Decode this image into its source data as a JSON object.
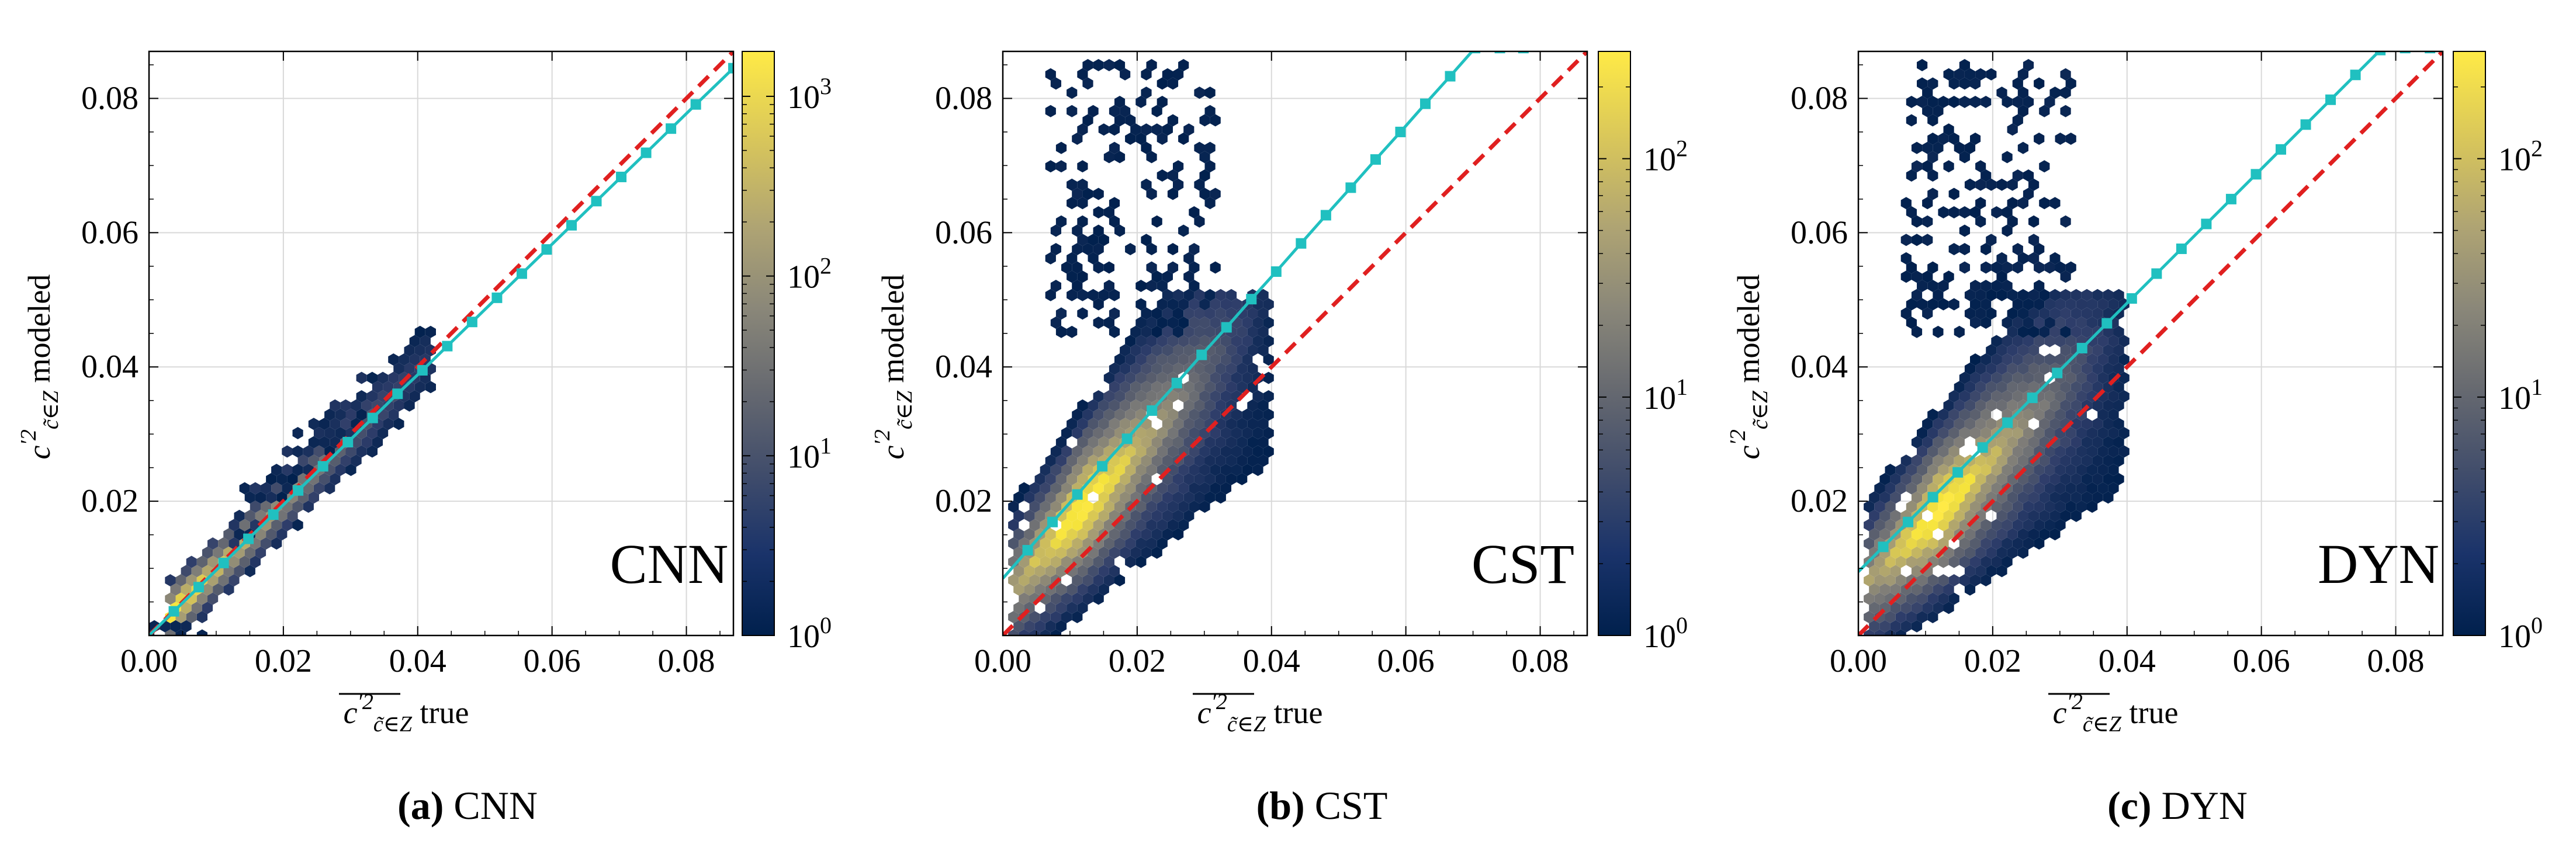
{
  "figure": {
    "colors": {
      "diagonal": "#e02020",
      "fit": "#20c0c0",
      "grid": "#d9d9d9",
      "cmap": [
        "#00204d",
        "#2e3d6a",
        "#575d6d",
        "#7c7b78",
        "#a59c74",
        "#cfbf5c",
        "#f5e33c",
        "#ffea46"
      ]
    },
    "panels": [
      {
        "id": "a",
        "caption_letter": "(a)",
        "caption_text": " CNN",
        "model": "CNN",
        "xlabel_main": "c",
        "xlabel_sup": "′2",
        "xlabel_sub": "c̃∈Z",
        "xlabel_suffix": " true",
        "ylabel_main": "c",
        "ylabel_sup": "′2",
        "ylabel_sub": "c̃∈Z",
        "ylabel_suffix": " modeled",
        "xticks": [
          "0.00",
          "0.02",
          "0.04",
          "0.06",
          "0.08"
        ],
        "yticks": [
          "0.02",
          "0.04",
          "0.06",
          "0.08"
        ],
        "colorbar_ticks": [
          {
            "base": "10",
            "exp": "0",
            "v": 0
          },
          {
            "base": "10",
            "exp": "1",
            "v": 1
          },
          {
            "base": "10",
            "exp": "2",
            "v": 2
          },
          {
            "base": "10",
            "exp": "3",
            "v": 3
          }
        ],
        "colorbar_max_exp": 3.25
      },
      {
        "id": "b",
        "caption_letter": "(b)",
        "caption_text": " CST",
        "model": "CST",
        "xlabel_main": "c",
        "xlabel_sup": "′2",
        "xlabel_sub": "c̃∈Z",
        "xlabel_suffix": " true",
        "ylabel_main": "c",
        "ylabel_sup": "′2",
        "ylabel_sub": "c̃∈Z",
        "ylabel_suffix": " modeled",
        "xticks": [
          "0.00",
          "0.02",
          "0.04",
          "0.06",
          "0.08"
        ],
        "yticks": [
          "0.02",
          "0.04",
          "0.06",
          "0.08"
        ],
        "colorbar_ticks": [
          {
            "base": "10",
            "exp": "0",
            "v": 0
          },
          {
            "base": "10",
            "exp": "1",
            "v": 1
          },
          {
            "base": "10",
            "exp": "2",
            "v": 2
          }
        ],
        "colorbar_max_exp": 2.45
      },
      {
        "id": "c",
        "caption_letter": "(c)",
        "caption_text": " DYN",
        "model": "DYN",
        "xlabel_main": "c",
        "xlabel_sup": "′2",
        "xlabel_sub": "c̃∈Z",
        "xlabel_suffix": " true",
        "ylabel_main": "c",
        "ylabel_sup": "′2",
        "ylabel_sub": "c̃∈Z",
        "ylabel_suffix": " modeled",
        "xticks": [
          "0.00",
          "0.02",
          "0.04",
          "0.06",
          "0.08"
        ],
        "yticks": [
          "0.02",
          "0.04",
          "0.06",
          "0.08"
        ],
        "colorbar_ticks": [
          {
            "base": "10",
            "exp": "0",
            "v": 0
          },
          {
            "base": "10",
            "exp": "1",
            "v": 1
          },
          {
            "base": "10",
            "exp": "2",
            "v": 2
          }
        ],
        "colorbar_max_exp": 2.45
      }
    ]
  },
  "chart_data": [
    {
      "type": "scatter",
      "subtype": "hexbin",
      "title": "CNN",
      "xlabel": "c'2 (c̃∈Z) true",
      "ylabel": "c'2 (c̃∈Z) modeled",
      "xlim": [
        0.0,
        0.087
      ],
      "ylim": [
        0.0,
        0.087
      ],
      "colorbar": {
        "scale": "log",
        "range": [
          1,
          1800
        ],
        "label_ticks": [
          "10^0",
          "10^1",
          "10^2",
          "10^3"
        ]
      },
      "series": [
        {
          "name": "reference y=x",
          "style": "dashed",
          "color": "#e02020",
          "x": [
            0.0,
            0.087
          ],
          "y": [
            0.0,
            0.087
          ]
        },
        {
          "name": "mean fit",
          "style": "solid-markers",
          "color": "#20c0c0",
          "x": [
            0.0,
            0.0037,
            0.0074,
            0.0111,
            0.0148,
            0.0185,
            0.0222,
            0.0259,
            0.0296,
            0.0333,
            0.037,
            0.0407,
            0.0444,
            0.0481,
            0.0518,
            0.0555,
            0.0592,
            0.0629,
            0.0666,
            0.0703,
            0.074,
            0.0777,
            0.0814,
            0.087
          ],
          "y": [
            0.0,
            0.0036,
            0.0072,
            0.0108,
            0.0144,
            0.018,
            0.0216,
            0.0252,
            0.0288,
            0.0324,
            0.036,
            0.0395,
            0.0431,
            0.0467,
            0.0503,
            0.0539,
            0.0575,
            0.0611,
            0.0647,
            0.0683,
            0.0719,
            0.0755,
            0.0791,
            0.0845
          ]
        }
      ]
    },
    {
      "type": "scatter",
      "subtype": "hexbin",
      "title": "CST",
      "xlabel": "c'2 (c̃∈Z) true",
      "ylabel": "c'2 (c̃∈Z) modeled",
      "xlim": [
        0.0,
        0.087
      ],
      "ylim": [
        0.0,
        0.087
      ],
      "colorbar": {
        "scale": "log",
        "range": [
          1,
          280
        ],
        "label_ticks": [
          "10^0",
          "10^1",
          "10^2"
        ]
      },
      "series": [
        {
          "name": "reference y=x",
          "style": "dashed",
          "color": "#e02020",
          "x": [
            0.0,
            0.087
          ],
          "y": [
            0.0,
            0.087
          ]
        },
        {
          "name": "mean fit",
          "style": "solid-markers",
          "color": "#20c0c0",
          "x": [
            0.0,
            0.0037,
            0.0074,
            0.0111,
            0.0148,
            0.0185,
            0.0222,
            0.0259,
            0.0296,
            0.0333,
            0.037,
            0.0407,
            0.0444,
            0.0481,
            0.0518,
            0.0555,
            0.0592,
            0.0629,
            0.0666,
            0.0703,
            0.074,
            0.0775
          ],
          "y": [
            0.0085,
            0.0127,
            0.0169,
            0.021,
            0.0252,
            0.0293,
            0.0335,
            0.0376,
            0.0418,
            0.0459,
            0.0501,
            0.0542,
            0.0584,
            0.0626,
            0.0667,
            0.0709,
            0.075,
            0.0792,
            0.0833,
            0.0875,
            0.0875,
            0.0875
          ]
        }
      ]
    },
    {
      "type": "scatter",
      "subtype": "hexbin",
      "title": "DYN",
      "xlabel": "c'2 (c̃∈Z) true",
      "ylabel": "c'2 (c̃∈Z) modeled",
      "xlim": [
        0.0,
        0.087
      ],
      "ylim": [
        0.0,
        0.087
      ],
      "colorbar": {
        "scale": "log",
        "range": [
          1,
          280
        ],
        "label_ticks": [
          "10^0",
          "10^1",
          "10^2"
        ]
      },
      "series": [
        {
          "name": "reference y=x",
          "style": "dashed",
          "color": "#e02020",
          "x": [
            0.0,
            0.087
          ],
          "y": [
            0.0,
            0.087
          ]
        },
        {
          "name": "mean fit",
          "style": "solid-markers",
          "color": "#20c0c0",
          "x": [
            0.0,
            0.0037,
            0.0074,
            0.0111,
            0.0148,
            0.0185,
            0.0222,
            0.0259,
            0.0296,
            0.0333,
            0.037,
            0.0407,
            0.0444,
            0.0481,
            0.0518,
            0.0555,
            0.0592,
            0.0629,
            0.0666,
            0.0703,
            0.074,
            0.0777,
            0.0814,
            0.0851
          ],
          "y": [
            0.0095,
            0.0132,
            0.0169,
            0.0206,
            0.0243,
            0.028,
            0.0317,
            0.0354,
            0.0391,
            0.0428,
            0.0465,
            0.0502,
            0.0539,
            0.0576,
            0.0613,
            0.065,
            0.0687,
            0.0724,
            0.0761,
            0.0798,
            0.0835,
            0.0872,
            0.0875,
            0.0875
          ]
        }
      ]
    }
  ]
}
